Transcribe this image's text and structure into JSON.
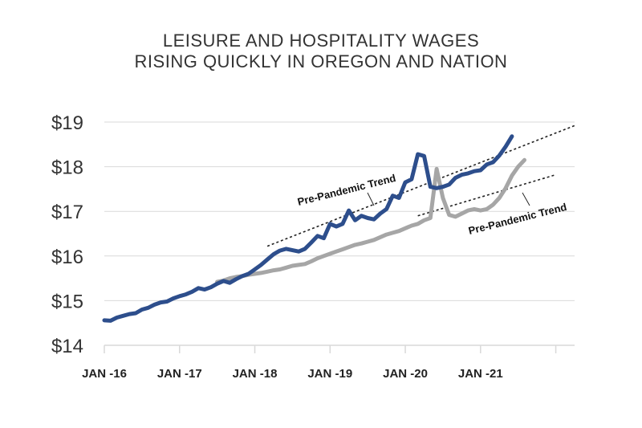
{
  "title_line1": "LEISURE AND HOSPITALITY WAGES",
  "title_line2": "RISING QUICKLY IN OREGON AND NATION",
  "chart_data": {
    "type": "line",
    "title": "LEISURE AND HOSPITALITY WAGES RISING QUICKLY IN OREGON AND NATION",
    "xlabel": "",
    "ylabel": "",
    "ylim": [
      14,
      19
    ],
    "yticks": [
      {
        "value": 19,
        "label": "$19"
      },
      {
        "value": 18,
        "label": "$18"
      },
      {
        "value": 17,
        "label": "$17"
      },
      {
        "value": 16,
        "label": "$16"
      },
      {
        "value": 15,
        "label": "$15"
      },
      {
        "value": 14,
        "label": "$14"
      }
    ],
    "xrange": [
      "2016-01",
      "2022-04"
    ],
    "xticks": [
      {
        "date": "2016-01",
        "label": "JAN -16"
      },
      {
        "date": "2017-01",
        "label": "JAN -17"
      },
      {
        "date": "2018-01",
        "label": "JAN -18"
      },
      {
        "date": "2019-01",
        "label": "JAN -19"
      },
      {
        "date": "2020-01",
        "label": "JAN -20"
      },
      {
        "date": "2021-01",
        "label": "JAN -21"
      }
    ],
    "grid": true,
    "colors": {
      "series_a": "#2d4e8c",
      "series_b": "#a6a6a6",
      "grid": "#d9d9d9",
      "trend": "#222222"
    },
    "series": [
      {
        "points": [
          [
            "2016-01",
            14.56
          ],
          [
            "2016-02",
            14.55
          ],
          [
            "2016-03",
            14.62
          ],
          [
            "2016-04",
            14.66
          ],
          [
            "2016-05",
            14.7
          ],
          [
            "2016-06",
            14.72
          ],
          [
            "2016-07",
            14.8
          ],
          [
            "2016-08",
            14.84
          ],
          [
            "2016-09",
            14.91
          ],
          [
            "2016-10",
            14.96
          ],
          [
            "2016-11",
            14.98
          ],
          [
            "2016-12",
            15.05
          ],
          [
            "2017-01",
            15.1
          ],
          [
            "2017-02",
            15.14
          ],
          [
            "2017-03",
            15.2
          ],
          [
            "2017-04",
            15.28
          ],
          [
            "2017-05",
            15.25
          ],
          [
            "2017-06",
            15.3
          ],
          [
            "2017-07",
            15.38
          ],
          [
            "2017-08",
            15.44
          ],
          [
            "2017-09",
            15.4
          ],
          [
            "2017-10",
            15.48
          ],
          [
            "2017-11",
            15.55
          ],
          [
            "2017-12",
            15.6
          ],
          [
            "2018-01",
            15.7
          ],
          [
            "2018-02",
            15.8
          ],
          [
            "2018-03",
            15.92
          ],
          [
            "2018-04",
            16.04
          ],
          [
            "2018-05",
            16.12
          ],
          [
            "2018-06",
            16.16
          ],
          [
            "2018-07",
            16.13
          ],
          [
            "2018-08",
            16.1
          ],
          [
            "2018-09",
            16.16
          ],
          [
            "2018-10",
            16.3
          ],
          [
            "2018-11",
            16.45
          ],
          [
            "2018-12",
            16.4
          ],
          [
            "2019-01",
            16.72
          ],
          [
            "2019-02",
            16.66
          ],
          [
            "2019-03",
            16.72
          ],
          [
            "2019-04",
            17.02
          ],
          [
            "2019-05",
            16.8
          ],
          [
            "2019-06",
            16.9
          ],
          [
            "2019-07",
            16.85
          ],
          [
            "2019-08",
            16.82
          ],
          [
            "2019-09",
            16.95
          ],
          [
            "2019-10",
            17.05
          ],
          [
            "2019-11",
            17.35
          ],
          [
            "2019-12",
            17.3
          ],
          [
            "2020-01",
            17.65
          ],
          [
            "2020-02",
            17.72
          ],
          [
            "2020-03",
            18.28
          ],
          [
            "2020-04",
            18.24
          ],
          [
            "2020-05",
            17.55
          ],
          [
            "2020-06",
            17.52
          ],
          [
            "2020-07",
            17.55
          ],
          [
            "2020-08",
            17.6
          ],
          [
            "2020-09",
            17.75
          ],
          [
            "2020-10",
            17.82
          ],
          [
            "2020-11",
            17.85
          ],
          [
            "2020-12",
            17.9
          ],
          [
            "2021-01",
            17.92
          ],
          [
            "2021-02",
            18.05
          ],
          [
            "2021-03",
            18.1
          ],
          [
            "2021-04",
            18.25
          ],
          [
            "2021-05",
            18.45
          ],
          [
            "2021-06",
            18.68
          ]
        ]
      },
      {
        "points": [
          [
            "2017-07",
            15.42
          ],
          [
            "2017-08",
            15.45
          ],
          [
            "2017-09",
            15.5
          ],
          [
            "2017-10",
            15.53
          ],
          [
            "2017-11",
            15.55
          ],
          [
            "2017-12",
            15.58
          ],
          [
            "2018-01",
            15.6
          ],
          [
            "2018-02",
            15.62
          ],
          [
            "2018-03",
            15.65
          ],
          [
            "2018-04",
            15.68
          ],
          [
            "2018-05",
            15.7
          ],
          [
            "2018-06",
            15.74
          ],
          [
            "2018-07",
            15.78
          ],
          [
            "2018-08",
            15.8
          ],
          [
            "2018-09",
            15.82
          ],
          [
            "2018-10",
            15.88
          ],
          [
            "2018-11",
            15.95
          ],
          [
            "2018-12",
            16.0
          ],
          [
            "2019-01",
            16.05
          ],
          [
            "2019-02",
            16.1
          ],
          [
            "2019-03",
            16.15
          ],
          [
            "2019-04",
            16.2
          ],
          [
            "2019-05",
            16.25
          ],
          [
            "2019-06",
            16.28
          ],
          [
            "2019-07",
            16.32
          ],
          [
            "2019-08",
            16.36
          ],
          [
            "2019-09",
            16.42
          ],
          [
            "2019-10",
            16.48
          ],
          [
            "2019-11",
            16.52
          ],
          [
            "2019-12",
            16.56
          ],
          [
            "2020-01",
            16.62
          ],
          [
            "2020-02",
            16.68
          ],
          [
            "2020-03",
            16.72
          ],
          [
            "2020-04",
            16.8
          ],
          [
            "2020-05",
            16.85
          ],
          [
            "2020-06",
            17.95
          ],
          [
            "2020-07",
            17.3
          ],
          [
            "2020-08",
            16.92
          ],
          [
            "2020-09",
            16.88
          ],
          [
            "2020-10",
            16.95
          ],
          [
            "2020-11",
            17.02
          ],
          [
            "2020-12",
            17.05
          ],
          [
            "2021-01",
            17.02
          ],
          [
            "2021-02",
            17.05
          ],
          [
            "2021-03",
            17.15
          ],
          [
            "2021-04",
            17.3
          ],
          [
            "2021-05",
            17.52
          ],
          [
            "2021-06",
            17.8
          ],
          [
            "2021-07",
            18.0
          ],
          [
            "2021-08",
            18.15
          ]
        ]
      }
    ],
    "annotations": [
      {
        "label": "Pre-Pandemic Trend",
        "start": [
          "2018-03",
          16.22
        ],
        "end": [
          "2022-04",
          18.92
        ]
      },
      {
        "label": "Pre-Pandemic Trend",
        "start": [
          "2020-03",
          16.9
        ],
        "end": [
          "2022-01",
          17.82
        ]
      }
    ]
  }
}
